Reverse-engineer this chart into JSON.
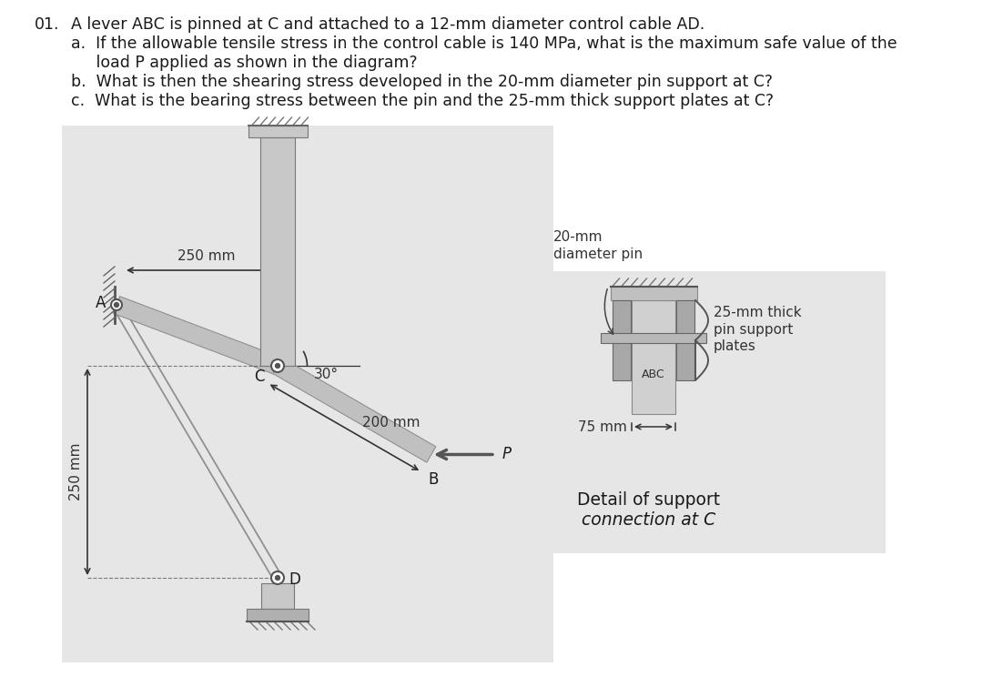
{
  "bg_color": "#e8e8e8",
  "white": "#ffffff",
  "text_color": "#1a1a1a",
  "title_number": "01.",
  "line0": "A lever ABC is pinned at C and attached to a 12-mm diameter control cable AD.",
  "line_a1": "a.  If the allowable tensile stress in the control cable is 140 MPa, what is the maximum safe value of the",
  "line_a2": "     load P applied as shown in the diagram?",
  "line_b": "b.  What is then the shearing stress developed in the 20-mm diameter pin support at C?",
  "line_c": "c.  What is the bearing stress between the pin and the 25-mm thick support plates at C?",
  "dim_250_top": "250 mm",
  "dim_200": "200 mm",
  "dim_250_left": "250 mm",
  "dim_30": "30°",
  "label_A": "A",
  "label_B": "B",
  "label_C": "C",
  "label_D": "D",
  "label_P": "P",
  "detail_pin": "20-mm\ndiameter pin",
  "detail_thick": "25-mm thick\npin support\nplates",
  "detail_75": "75 mm",
  "detail_ABC": "ABC",
  "detail_cap1": "Detail of support",
  "detail_cap2": "connection at C",
  "gray_bg": "#e6e6e6",
  "gray_arm": "#c0c0c0",
  "gray_arm_edge": "#909090",
  "gray_bracket": "#c8c8c8",
  "gray_plate": "#a8a8a8",
  "gray_center": "#d0d0d0",
  "gray_pin_bar": "#b8b8b8",
  "gray_ground": "#b0b0b0",
  "dim_color": "#333333"
}
